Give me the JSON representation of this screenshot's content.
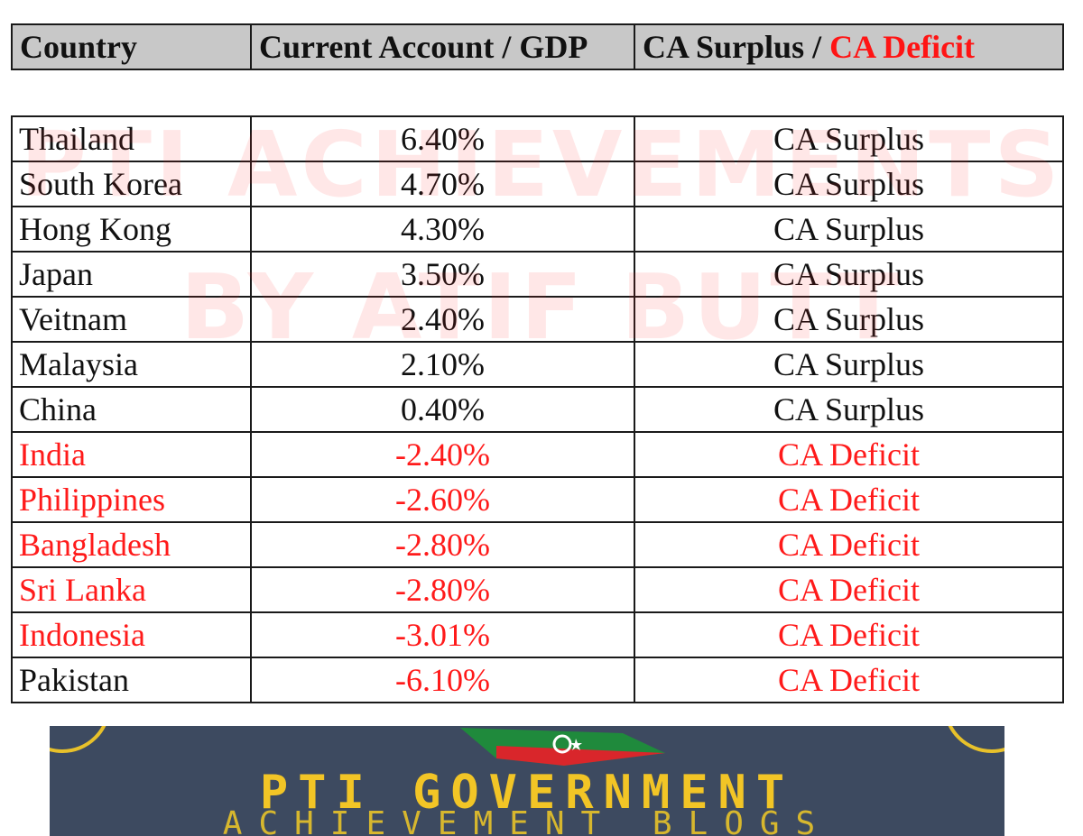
{
  "header": {
    "col1": "Country",
    "col2": "Current Account / GDP",
    "col3_surplus": "CA Surplus /",
    "col3_deficit": "CA Deficit"
  },
  "rows": [
    {
      "country": "Thailand",
      "value": "6.40%",
      "status": "CA Surplus"
    },
    {
      "country": "South Korea",
      "value": "4.70%",
      "status": "CA Surplus"
    },
    {
      "country": "Hong Kong",
      "value": "4.30%",
      "status": "CA Surplus"
    },
    {
      "country": "Japan",
      "value": "3.50%",
      "status": "CA Surplus"
    },
    {
      "country": "Veitnam",
      "value": "2.40%",
      "status": "CA Surplus"
    },
    {
      "country": "Malaysia",
      "value": "2.10%",
      "status": "CA Surplus"
    },
    {
      "country": "China",
      "value": "0.40%",
      "status": "CA Surplus"
    },
    {
      "country": "India",
      "value": "-2.40%",
      "status": "CA Deficit"
    },
    {
      "country": "Philippines",
      "value": "-2.60%",
      "status": "CA Deficit"
    },
    {
      "country": "Bangladesh",
      "value": "-2.80%",
      "status": "CA Deficit"
    },
    {
      "country": "Sri Lanka",
      "value": "-2.80%",
      "status": "CA Deficit"
    },
    {
      "country": "Indonesia",
      "value": "-3.01%",
      "status": "CA Deficit"
    },
    {
      "country": "Pakistan",
      "value": "-6.10%",
      "status": "CA Deficit"
    }
  ],
  "watermark": {
    "line1": "PTI ACHIEVEMENTS",
    "line2": "BY ATIF BUTT"
  },
  "banner": {
    "title": "PTI GOVERNMENT",
    "subtitle": "ACHIEVEMENT BLOGS"
  },
  "colors": {
    "deficit_red": "#ff1a1a",
    "header_gray": "#c8c8c8",
    "banner_bg": "#3d4a60",
    "banner_text": "#f2c526"
  }
}
